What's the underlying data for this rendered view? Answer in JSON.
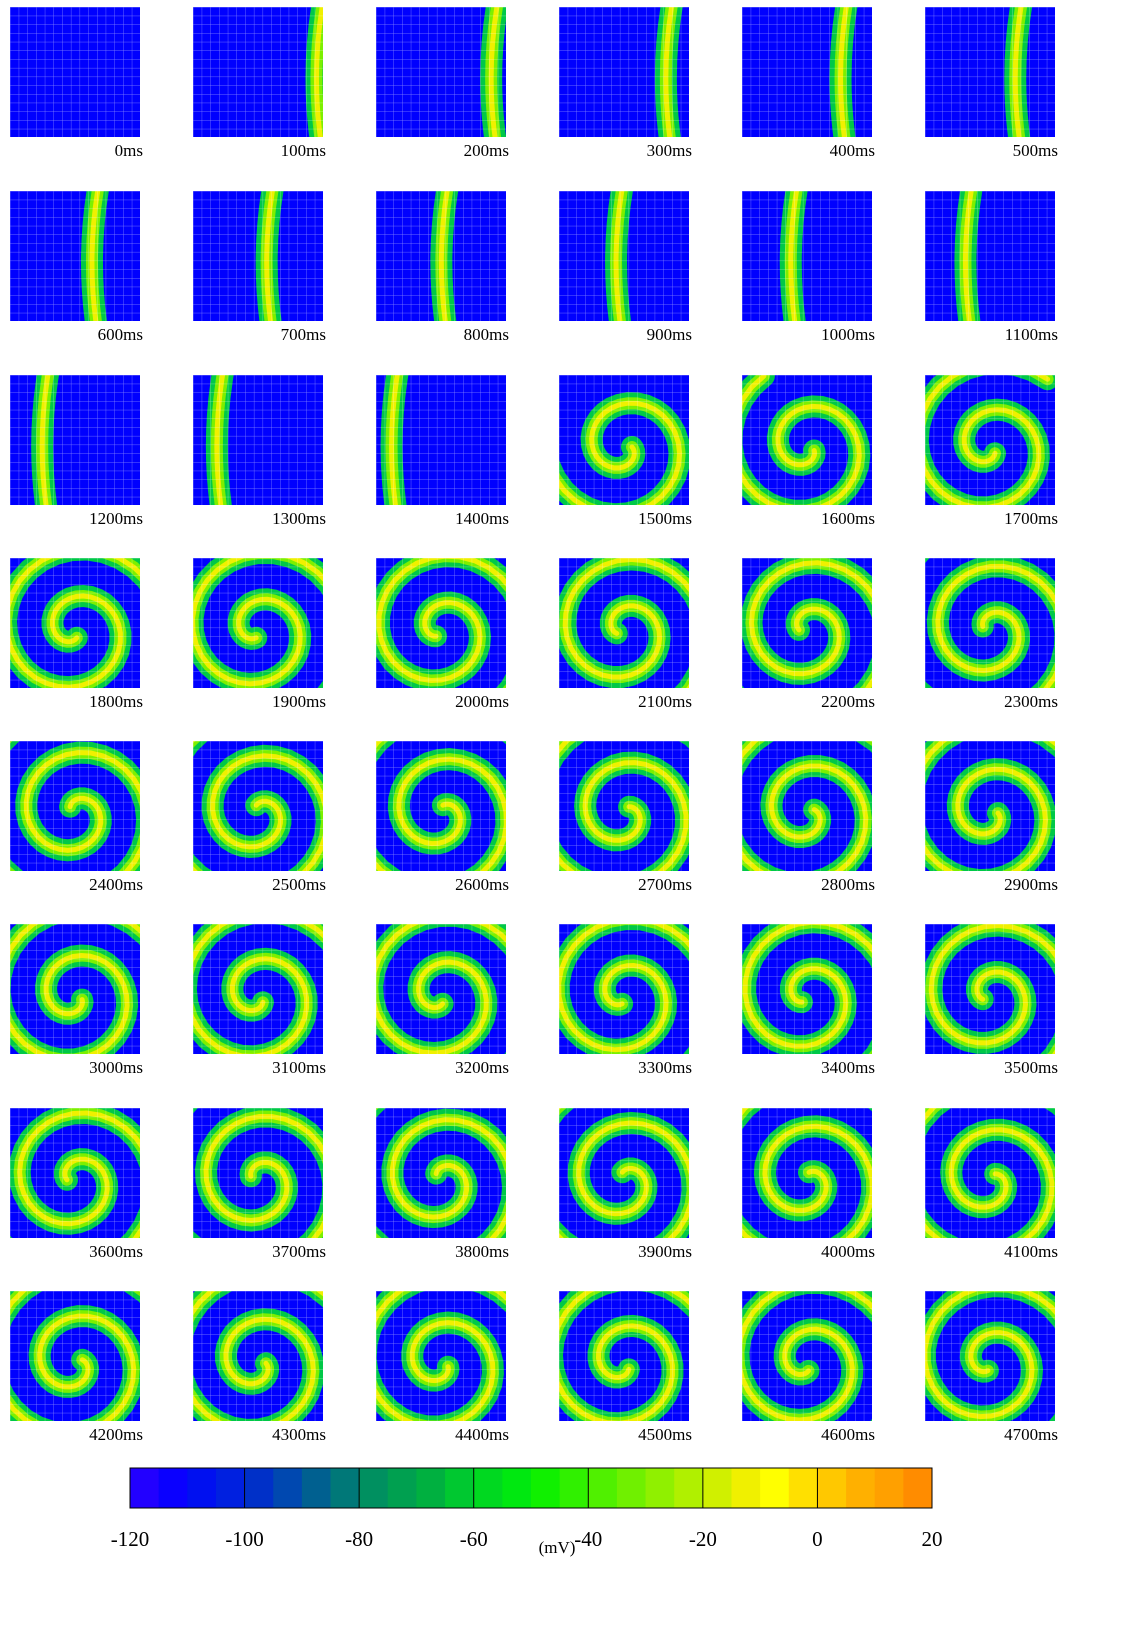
{
  "panels": [
    "0ms",
    "100ms",
    "200ms",
    "300ms",
    "400ms",
    "500ms",
    "600ms",
    "700ms",
    "800ms",
    "900ms",
    "1000ms",
    "1100ms",
    "1200ms",
    "1300ms",
    "1400ms",
    "1500ms",
    "1600ms",
    "1700ms",
    "1800ms",
    "1900ms",
    "2000ms",
    "2100ms",
    "2200ms",
    "2300ms",
    "2400ms",
    "2500ms",
    "2600ms",
    "2700ms",
    "2800ms",
    "2900ms",
    "3000ms",
    "3100ms",
    "3200ms",
    "3300ms",
    "3400ms",
    "3500ms",
    "3600ms",
    "3700ms",
    "3800ms",
    "3900ms",
    "4000ms",
    "4100ms",
    "4200ms",
    "4300ms",
    "4400ms",
    "4500ms",
    "4600ms",
    "4700ms"
  ],
  "colorbar": {
    "lim": [
      -120,
      20
    ],
    "ticks": [
      -120,
      -100,
      -80,
      -60,
      -40,
      -20,
      0,
      20
    ],
    "unit": "(mV)",
    "colors": [
      "#2200ff",
      "#0a00ff",
      "#0010f0",
      "#0020e0",
      "#0030c8",
      "#0048b0",
      "#006090",
      "#007878",
      "#009060",
      "#00a050",
      "#00b040",
      "#00c830",
      "#00d820",
      "#00e810",
      "#10f000",
      "#30f000",
      "#50f000",
      "#70f000",
      "#90f000",
      "#b0f000",
      "#d0f000",
      "#f0f000",
      "#ffff00",
      "#ffe000",
      "#ffc800",
      "#ffb000",
      "#ffa000",
      "#ff8c00"
    ]
  }
}
